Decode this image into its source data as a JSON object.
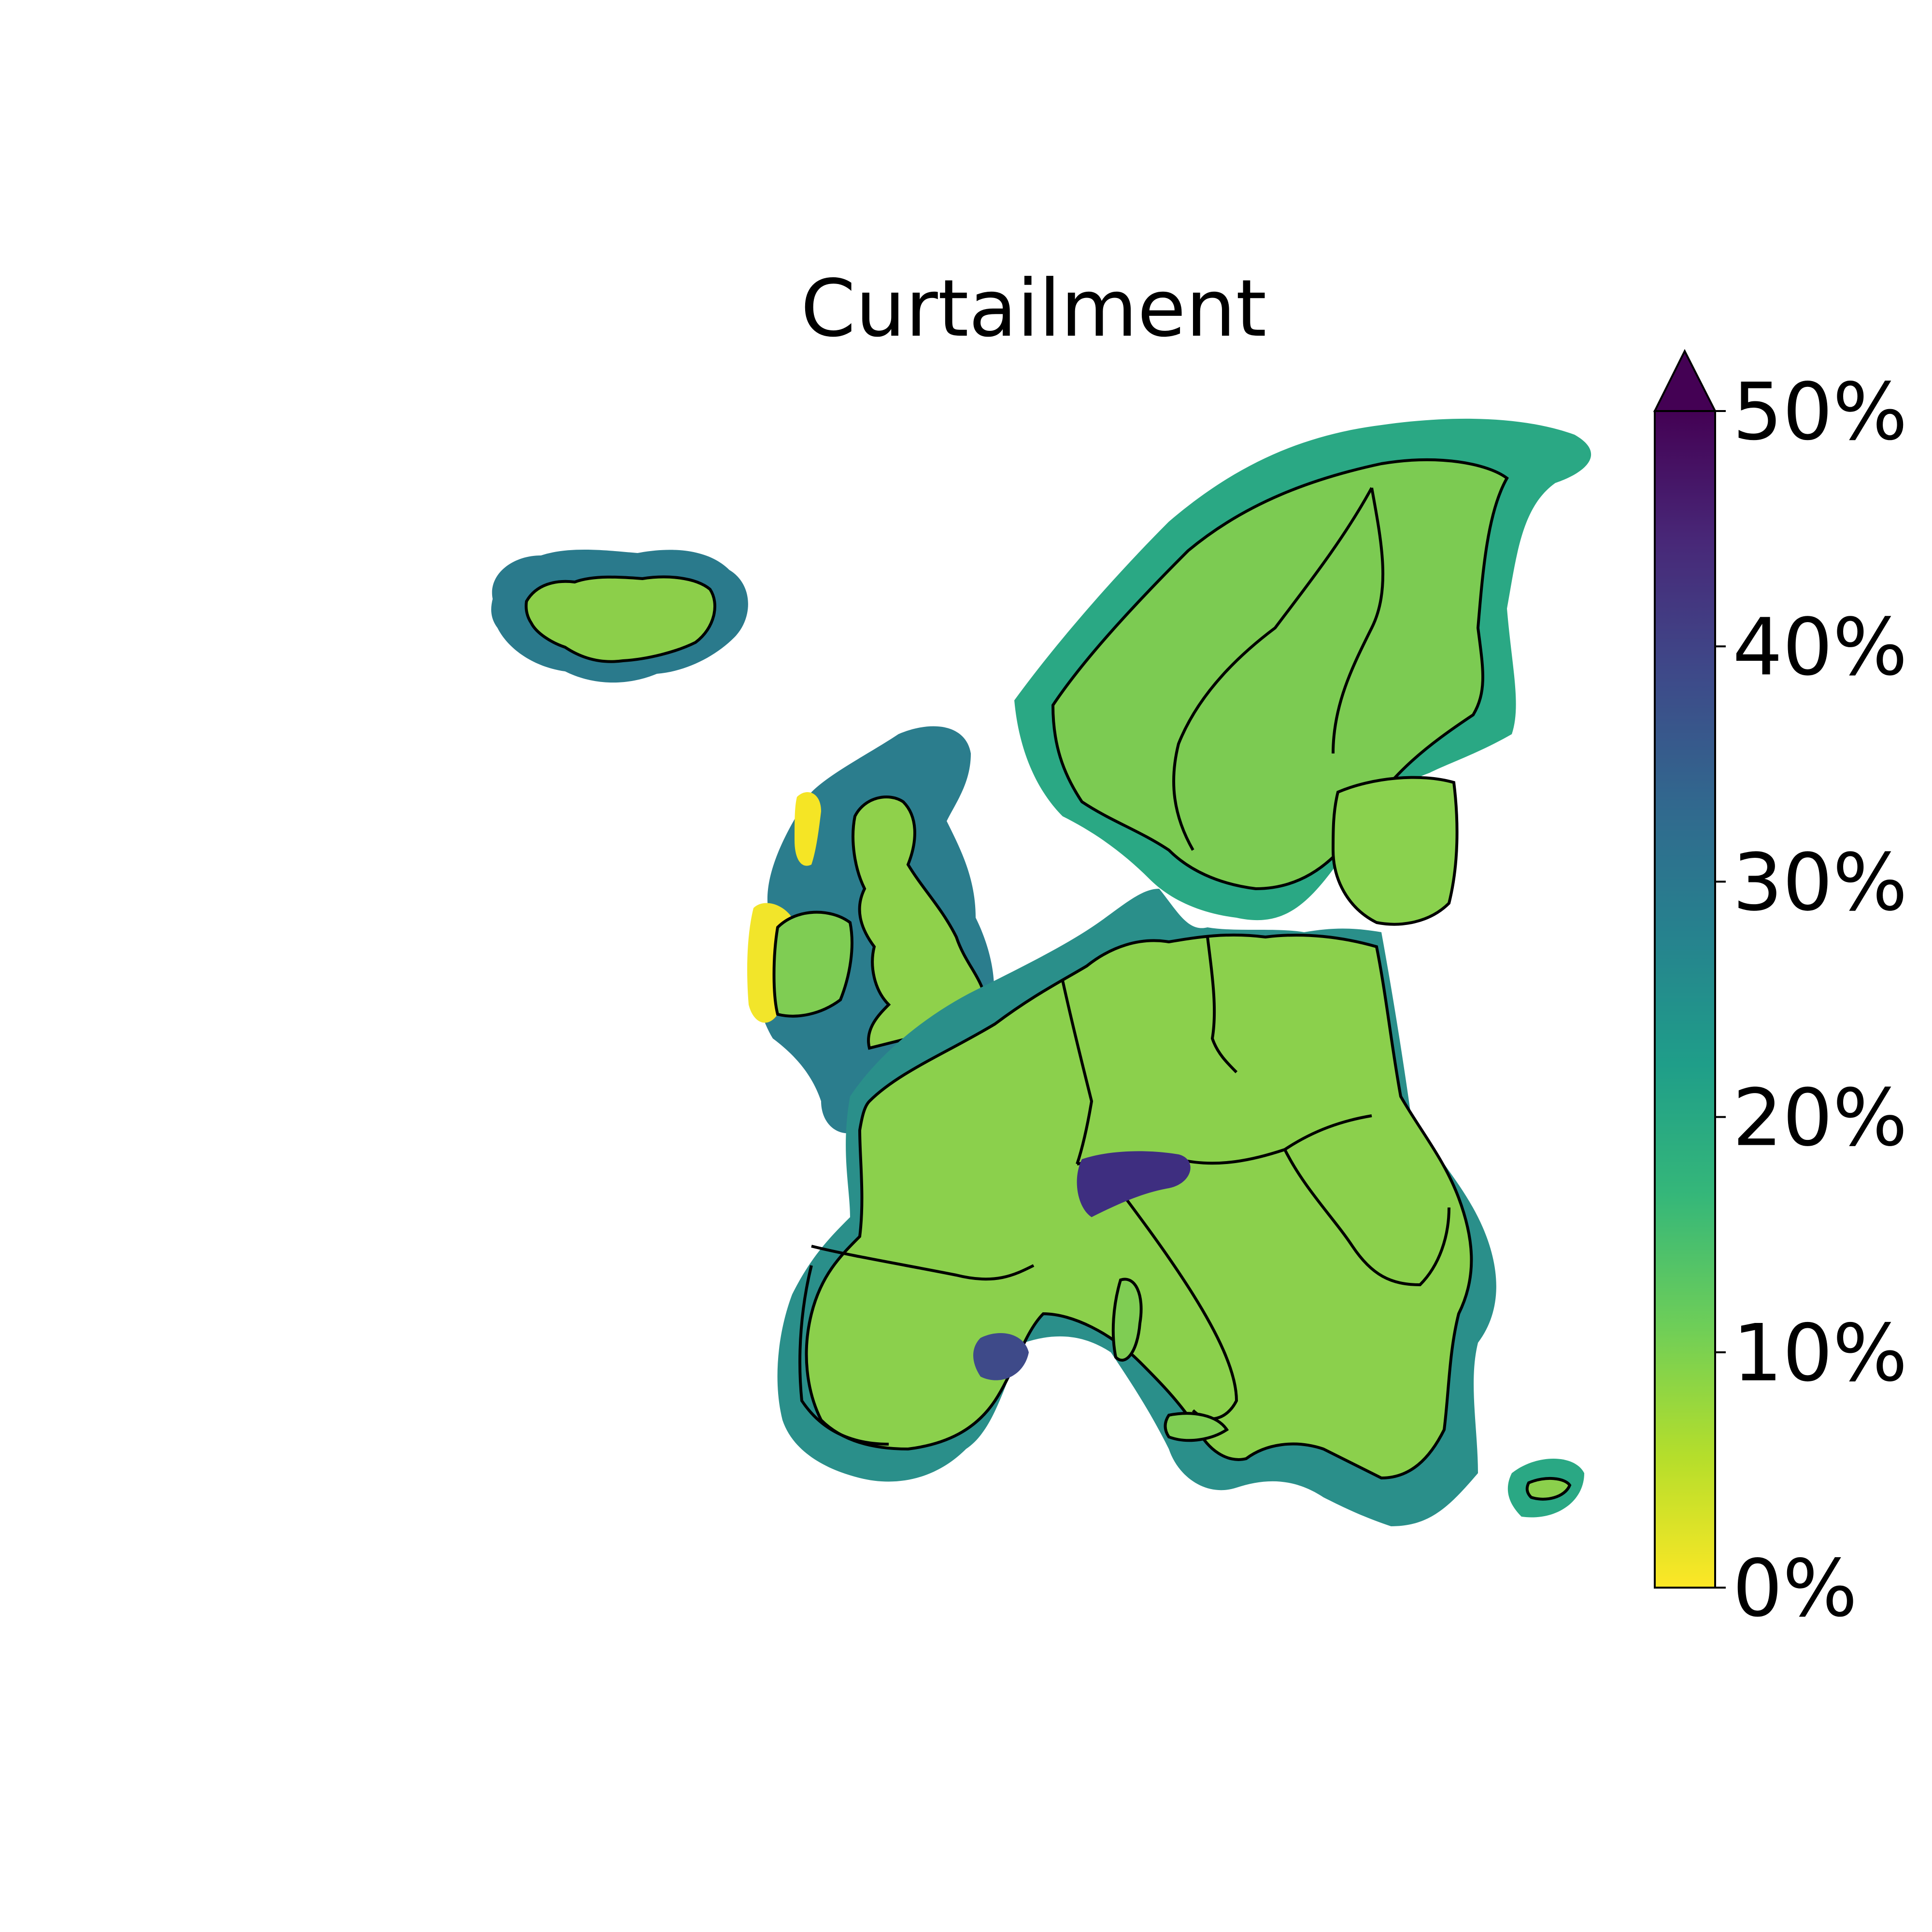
{
  "figure": {
    "title": "Curtailment"
  },
  "colorbar": {
    "colormap": "viridis (reversed)",
    "min": 0,
    "max": 50,
    "extend": "max",
    "extend_color": "#440154",
    "ticks": [
      {
        "value": 0,
        "label": "0%"
      },
      {
        "value": 10,
        "label": "10%"
      },
      {
        "value": 20,
        "label": "20%"
      },
      {
        "value": 30,
        "label": "30%"
      },
      {
        "value": 40,
        "label": "40%"
      },
      {
        "value": 50,
        "label": "50%"
      }
    ],
    "stops": [
      "#fde725",
      "#b5de2b",
      "#6ece58",
      "#35b779",
      "#1f9e89",
      "#26828e",
      "#31688e",
      "#3e4989",
      "#482878",
      "#440154"
    ]
  },
  "map": {
    "region": "Europe",
    "country_borders": "black",
    "typical_range": "about 10% on land; 20–35% offshore around Britain, Iceland and Scandinavia",
    "hotspots": [
      "Alps (up to 50%)",
      "Balearic coast (about 40%)"
    ],
    "low_spots": [
      "west coast of Ireland and Scotland (0%)",
      "Mediterranean coasts (0–5%)"
    ]
  }
}
